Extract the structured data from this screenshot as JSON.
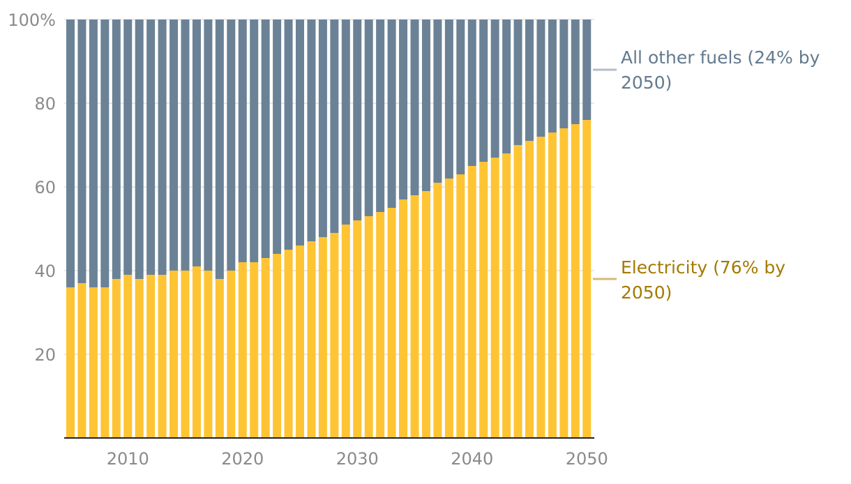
{
  "chart_data": {
    "type": "bar",
    "stacked": true,
    "title": "",
    "xlabel": "",
    "ylabel": "",
    "ylim": [
      0,
      100
    ],
    "yticks": [
      "20",
      "40",
      "60",
      "80",
      "100%"
    ],
    "ytick_values": [
      20,
      40,
      60,
      80,
      100
    ],
    "xticks": [
      "2010",
      "2020",
      "2030",
      "2040",
      "2050"
    ],
    "xtick_values": [
      2010,
      2020,
      2030,
      2040,
      2050
    ],
    "categories": [
      2005,
      2006,
      2007,
      2008,
      2009,
      2010,
      2011,
      2012,
      2013,
      2014,
      2015,
      2016,
      2017,
      2018,
      2019,
      2020,
      2021,
      2022,
      2023,
      2024,
      2025,
      2026,
      2027,
      2028,
      2029,
      2030,
      2031,
      2032,
      2033,
      2034,
      2035,
      2036,
      2037,
      2038,
      2039,
      2040,
      2041,
      2042,
      2043,
      2044,
      2045,
      2046,
      2047,
      2048,
      2049,
      2050
    ],
    "series": [
      {
        "name": "Electricity",
        "label": "Electricity (76% by 2050)",
        "color": "#FFC433",
        "label_color": "#A37A00",
        "legend_line_color": "#D4BA72",
        "values": [
          36,
          37,
          36,
          36,
          38,
          39,
          38,
          39,
          39,
          40,
          40,
          41,
          40,
          38,
          40,
          42,
          42,
          43,
          44,
          45,
          46,
          47,
          48,
          49,
          51,
          52,
          53,
          54,
          55,
          57,
          58,
          59,
          61,
          62,
          63,
          65,
          66,
          67,
          68,
          70,
          71,
          72,
          73,
          74,
          75,
          76
        ]
      },
      {
        "name": "All other fuels",
        "label": "All other fuels (24% by 2050)",
        "color": "#6B8296",
        "label_color": "#637A8E",
        "legend_line_color": "#B0BECA",
        "values": [
          64,
          63,
          64,
          64,
          62,
          61,
          62,
          61,
          61,
          60,
          60,
          59,
          60,
          62,
          60,
          58,
          58,
          57,
          56,
          55,
          54,
          53,
          52,
          51,
          49,
          48,
          47,
          46,
          45,
          43,
          42,
          41,
          39,
          38,
          37,
          35,
          34,
          33,
          32,
          30,
          29,
          28,
          27,
          26,
          25,
          24
        ]
      }
    ],
    "grid": true,
    "legend": "right, direct labels"
  }
}
